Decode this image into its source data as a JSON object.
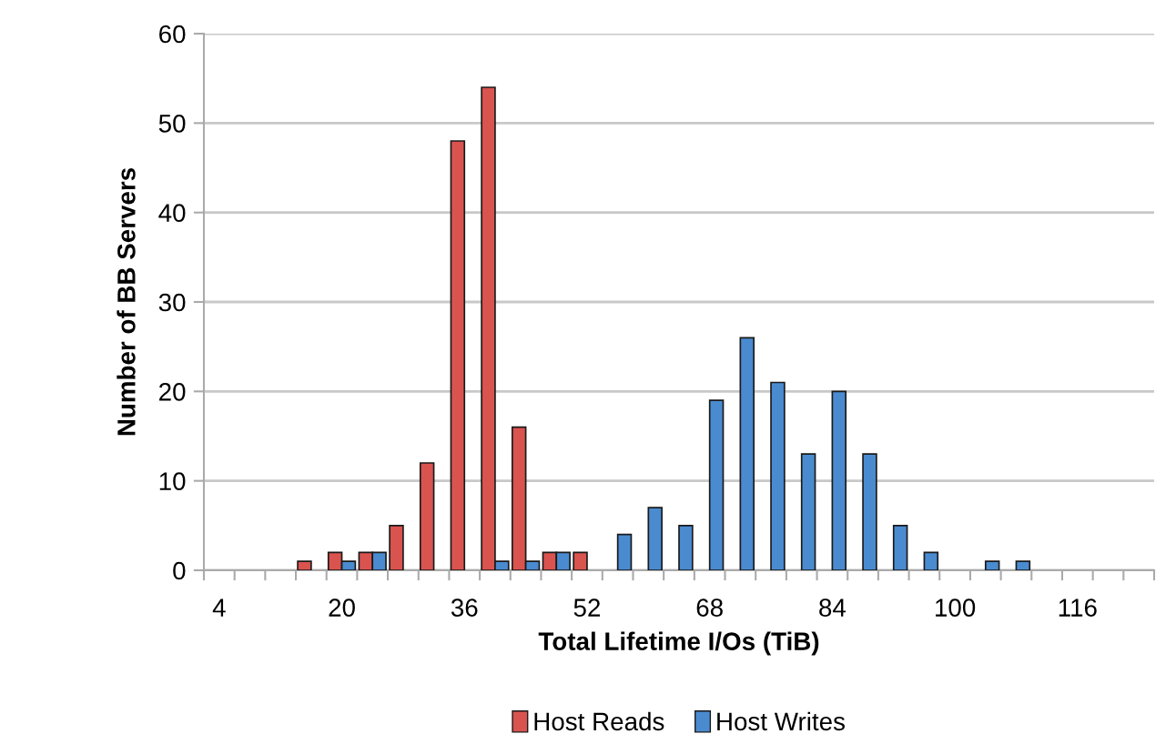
{
  "chart_data": {
    "type": "bar",
    "xlabel": "Total Lifetime I/Os (TiB)",
    "ylabel": "Number of BB Servers",
    "categories": [
      "4",
      null,
      null,
      null,
      "20",
      null,
      null,
      null,
      "36",
      null,
      null,
      null,
      "52",
      null,
      null,
      null,
      "68",
      null,
      null,
      null,
      "84",
      null,
      null,
      null,
      "100",
      null,
      null,
      null,
      "116",
      null,
      null
    ],
    "series": [
      {
        "name": "Host Reads",
        "color": "#d9534f",
        "values": [
          0,
          0,
          0,
          1,
          2,
          2,
          5,
          12,
          48,
          54,
          16,
          2,
          2,
          0,
          0,
          0,
          0,
          0,
          0,
          0,
          0,
          0,
          0,
          0,
          0,
          0,
          0,
          0,
          0,
          0,
          0
        ]
      },
      {
        "name": "Host Writes",
        "color": "#4a8bd0",
        "values": [
          0,
          0,
          0,
          0,
          1,
          2,
          0,
          0,
          0,
          1,
          1,
          2,
          0,
          4,
          7,
          5,
          19,
          26,
          21,
          13,
          20,
          13,
          5,
          2,
          0,
          1,
          1,
          0,
          0,
          0,
          0
        ]
      }
    ],
    "ylim": [
      0,
      60
    ],
    "yticks": [
      0,
      10,
      20,
      30,
      40,
      50,
      60
    ],
    "grid": "y",
    "legend": "bottom"
  }
}
